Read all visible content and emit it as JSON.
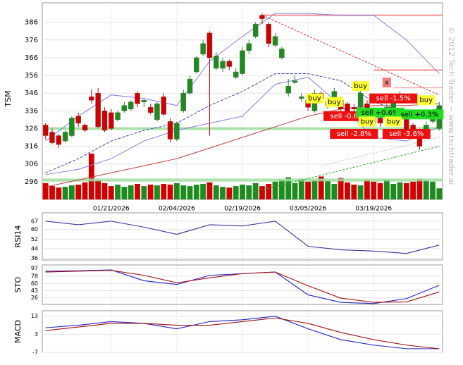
{
  "chart_data": {
    "type": "candlestick",
    "ylabel": "TSM",
    "watermark": "© 2012 Tech Trader ~ www.techtrader.ai",
    "categories": [
      null,
      null,
      null,
      null,
      null,
      null,
      null,
      null,
      null,
      null,
      "01/21/2026",
      null,
      null,
      null,
      null,
      null,
      null,
      null,
      null,
      null,
      "02/04/2026",
      null,
      null,
      null,
      null,
      null,
      null,
      null,
      null,
      null,
      "02/19/2026",
      null,
      null,
      null,
      null,
      null,
      null,
      null,
      null,
      null,
      "03/05/2026",
      null,
      null,
      null,
      null,
      null,
      null,
      null,
      null,
      null,
      "03/19/2026",
      null,
      null,
      null,
      null,
      null,
      null,
      null,
      null,
      null,
      null
    ],
    "open": [
      328,
      324,
      322,
      319,
      322,
      333,
      328,
      344,
      346,
      336,
      335,
      331,
      336,
      337,
      346,
      341,
      338,
      331,
      344,
      330,
      320,
      336,
      346,
      358,
      368,
      380,
      360,
      360,
      364,
      355,
      357,
      370,
      378,
      390,
      385,
      373,
      366,
      346,
      352,
      343,
      342,
      336,
      346,
      339,
      343,
      342,
      340,
      338,
      338,
      340,
      336,
      332,
      333,
      336,
      342,
      334,
      328,
      322,
      322,
      330,
      326
    ],
    "high": [
      329,
      326,
      323,
      325,
      333,
      335,
      329,
      348,
      349,
      338,
      337,
      336,
      341,
      342,
      347,
      343,
      340,
      341,
      346,
      332,
      330,
      348,
      356,
      367,
      376,
      381,
      369,
      366,
      365,
      360,
      372,
      376,
      386,
      391,
      386,
      380,
      372,
      354,
      356,
      346,
      344,
      348,
      347,
      343,
      349,
      344,
      341,
      340,
      348,
      342,
      338,
      334,
      340,
      345,
      347,
      336,
      329,
      324,
      330,
      337,
      341
    ],
    "low": [
      320,
      317,
      315,
      318,
      321,
      327,
      324,
      340,
      326,
      324,
      325,
      330,
      335,
      336,
      338,
      338,
      334,
      330,
      333,
      318,
      319,
      335,
      345,
      357,
      367,
      322,
      359,
      358,
      359,
      354,
      356,
      368,
      377,
      385,
      372,
      372,
      365,
      344,
      351,
      341,
      336,
      335,
      341,
      337,
      342,
      335,
      332,
      335,
      337,
      331,
      327,
      327,
      332,
      335,
      341,
      322,
      320,
      314,
      321,
      329,
      325
    ],
    "close": [
      322,
      318,
      317,
      324,
      332,
      329,
      325,
      342,
      327,
      325,
      326,
      335,
      339,
      341,
      340,
      342,
      335,
      340,
      334,
      320,
      329,
      346,
      354,
      366,
      374,
      366,
      367,
      364,
      361,
      358,
      370,
      374,
      385,
      388,
      374,
      378,
      371,
      350,
      353,
      344,
      338,
      346,
      343,
      341,
      347,
      337,
      334,
      337,
      346,
      333,
      329,
      329,
      338,
      343,
      345,
      324,
      322,
      316,
      328,
      336,
      339
    ],
    "up_color": "#1e8b1e",
    "down_color": "#d10000",
    "volume": [
      22,
      18,
      16,
      17,
      19,
      20,
      23,
      62,
      26,
      22,
      18,
      20,
      17,
      19,
      21,
      18,
      20,
      19,
      21,
      20,
      22,
      19,
      18,
      20,
      21,
      23,
      19,
      17,
      16,
      18,
      20,
      19,
      22,
      18,
      21,
      24,
      27,
      30,
      22,
      28,
      24,
      26,
      31,
      25,
      21,
      29,
      23,
      20,
      19,
      26,
      24,
      22,
      27,
      21,
      23,
      22,
      24,
      28,
      26,
      24,
      15
    ],
    "ylim": [
      286,
      397
    ],
    "yticks": [
      296,
      306,
      316,
      326,
      336,
      346,
      356,
      366,
      376,
      386
    ],
    "grid": true,
    "overlays": {
      "x": [
        0,
        5,
        10,
        15,
        20,
        25,
        30,
        35,
        40,
        45,
        50,
        55,
        60
      ],
      "series": [
        {
          "color": "#8080e0",
          "dash": false,
          "values": [
            319,
            333,
            345,
            343,
            339,
            364,
            378,
            391,
            391,
            390,
            390,
            376,
            357
          ]
        },
        {
          "color": "#8080e0",
          "dash": false,
          "values": [
            300,
            303,
            309,
            319,
            325,
            329,
            333,
            351,
            355,
            339,
            321,
            319,
            327
          ]
        },
        {
          "color": "#4040c0",
          "dash": true,
          "values": [
            301,
            309,
            319,
            325,
            329,
            339,
            347,
            357,
            357,
            353,
            341,
            335,
            337
          ]
        },
        {
          "color": "#c04040",
          "dash": false,
          "values": [
            293,
            297,
            301,
            305,
            309,
            315,
            321,
            327,
            333,
            337,
            339,
            339,
            340
          ]
        }
      ]
    },
    "levels": [
      {
        "value": 390,
        "from": 33,
        "color": "#f08080",
        "width": 2
      },
      {
        "value": 359,
        "from": 50,
        "color": "#f08080",
        "width": 2
      },
      {
        "value": 349,
        "from": 53,
        "color": "#f08080",
        "width": 1
      },
      {
        "value": 326,
        "from": 0,
        "color": "#9ee09e",
        "width": 4
      },
      {
        "value": 297,
        "from": 0,
        "color": "#9ee09e",
        "width": 4
      }
    ],
    "trendlines": [
      {
        "x": [
          33,
          60
        ],
        "y": [
          390,
          345
        ],
        "color": "#e03030"
      },
      {
        "x": [
          27,
          60
        ],
        "y": [
          286,
          316
        ],
        "color": "#30a030"
      },
      {
        "x": [
          42,
          60
        ],
        "y": [
          305,
          321
        ],
        "color": "#c8c8c8"
      }
    ],
    "annotations": [
      {
        "text": "buy",
        "x": 41,
        "y": 343,
        "color": "#ffff33"
      },
      {
        "text": "buy",
        "x": 44,
        "y": 341,
        "color": "#ffff33"
      },
      {
        "text": "buy",
        "x": 48,
        "y": 350,
        "color": "#ffff33"
      },
      {
        "text": "x",
        "x": 52,
        "y": 352,
        "color": "#f08080"
      },
      {
        "text": "sell -1.5%",
        "x": 53,
        "y": 343,
        "color": "#ee1111"
      },
      {
        "text": "buy",
        "x": 58,
        "y": 342,
        "color": "#ffff33"
      },
      {
        "text": "sell -0.6%",
        "x": 46,
        "y": 333,
        "color": "#ee1111"
      },
      {
        "text": "sell +0.6%",
        "x": 51,
        "y": 335,
        "color": "#22dd22"
      },
      {
        "text": "sell +0.3%",
        "x": 57,
        "y": 334,
        "color": "#22dd22"
      },
      {
        "text": "buy",
        "x": 49,
        "y": 330,
        "color": "#ffff33"
      },
      {
        "text": "buy",
        "x": 53,
        "y": 330,
        "color": "#ffff33"
      },
      {
        "text": "sell -2.8%",
        "x": 47,
        "y": 323,
        "color": "#ee1111"
      },
      {
        "text": "sell -3.6%",
        "x": 55,
        "y": 323,
        "color": "#ee1111"
      }
    ],
    "indicators": [
      {
        "label": "RSI14",
        "ylim": [
          34.5,
          74
        ],
        "yticks": [
          36,
          44,
          52,
          60,
          67
        ],
        "x": [
          0,
          5,
          10,
          15,
          20,
          25,
          30,
          35,
          40,
          45,
          50,
          55,
          60
        ],
        "series": [
          {
            "color": "#33339a",
            "values": [
              67,
              64,
              67,
              62,
              56,
              64,
              63,
              67,
              46,
              43,
              42,
              40,
              47
            ]
          }
        ]
      },
      {
        "label": "STO",
        "ylim": [
          10,
          105
        ],
        "yticks": [
          26,
          43,
          60,
          78,
          97
        ],
        "x": [
          0,
          5,
          10,
          15,
          20,
          25,
          30,
          35,
          40,
          45,
          50,
          55,
          60
        ],
        "series": [
          {
            "color": "#2020c0",
            "values": [
              90,
              91,
              93,
              67,
              58,
              80,
              84,
              88,
              33,
              15,
              12,
              24,
              56
            ]
          },
          {
            "color": "#a01010",
            "values": [
              88,
              90,
              92,
              80,
              62,
              74,
              84,
              88,
              55,
              25,
              15,
              16,
              40
            ]
          }
        ]
      },
      {
        "label": "MACD",
        "ylim": [
          -7,
          16
        ],
        "yticks": [
          -7,
          3,
          13
        ],
        "x": [
          0,
          5,
          10,
          15,
          20,
          25,
          30,
          35,
          40,
          45,
          50,
          55,
          60
        ],
        "series": [
          {
            "color": "#2020c0",
            "values": [
              6.6,
              8,
              10,
              9,
              6,
              10,
              11,
              13,
              6,
              0,
              -3,
              -5,
              -5
            ]
          },
          {
            "color": "#a01010",
            "values": [
              5,
              7,
              9,
              9,
              8,
              8,
              10,
              12,
              9,
              4,
              0,
              -3,
              -5
            ]
          }
        ]
      }
    ]
  }
}
